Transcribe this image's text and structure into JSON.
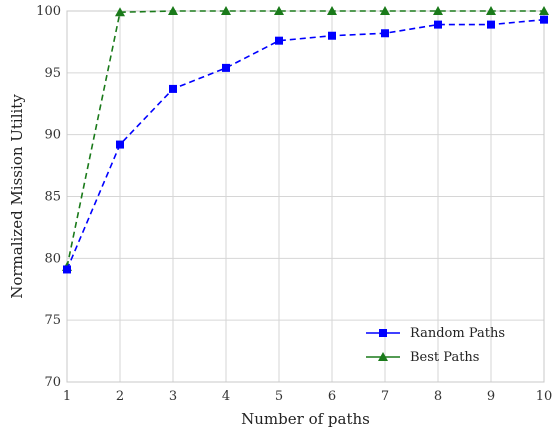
{
  "chart_data": {
    "type": "line",
    "title": "",
    "xlabel": "Number of paths",
    "ylabel": "Normalized Mission Utility",
    "xlim": [
      1,
      10
    ],
    "ylim": [
      70,
      100
    ],
    "xticks": [
      1,
      2,
      3,
      4,
      5,
      6,
      7,
      8,
      9,
      10
    ],
    "yticks": [
      70,
      75,
      80,
      85,
      90,
      95,
      100
    ],
    "grid": true,
    "legend_position": "bottom-right",
    "x": [
      1,
      2,
      3,
      4,
      5,
      6,
      7,
      8,
      9,
      10
    ],
    "series": [
      {
        "name": "Random Paths",
        "values": [
          79.1,
          89.2,
          93.7,
          95.4,
          97.6,
          98.0,
          98.2,
          98.9,
          98.9,
          99.3
        ],
        "color": "#0000ff",
        "marker": "square",
        "line_style": "dashed"
      },
      {
        "name": "Best Paths",
        "values": [
          79.3,
          99.9,
          100,
          100,
          100,
          100,
          100,
          100,
          100,
          100
        ],
        "color": "#1a7a1a",
        "marker": "triangle",
        "line_style": "dashed"
      }
    ]
  }
}
